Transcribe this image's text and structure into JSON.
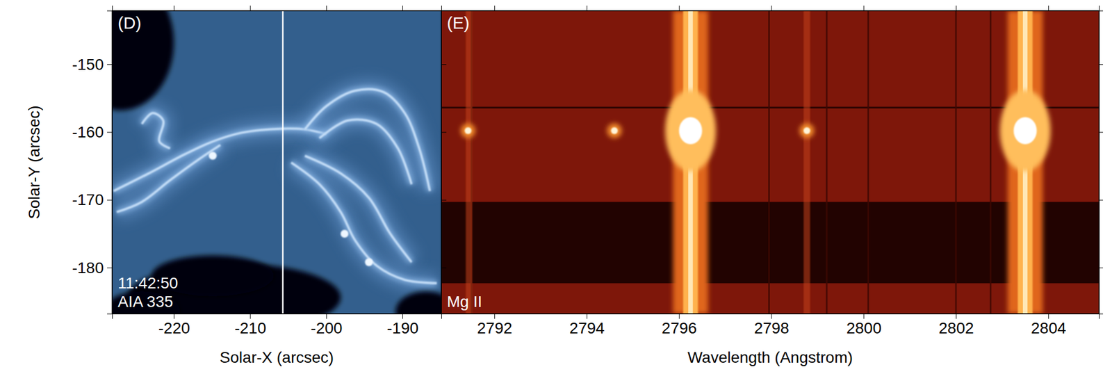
{
  "chart_data": [
    {
      "type": "image",
      "panel_label": "(D)",
      "annotations": [
        "11:42:50",
        "AIA 335"
      ],
      "xlabel": "Solar-X (arcsec)",
      "ylabel": "Solar-Y (arcsec)",
      "xlim": [
        -228.1,
        -184.9
      ],
      "ylim": [
        -186.8,
        -142.1
      ],
      "xticks": [
        -220,
        -210,
        -200,
        -190
      ],
      "yticks": [
        -180,
        -170,
        -160,
        -150
      ],
      "slit_x": -205.7,
      "loops": [
        [
          [
            -227.9,
            -168.7
          ],
          [
            -223.3,
            -166.1
          ],
          [
            -218.6,
            -163.3
          ],
          [
            -214.9,
            -161.4
          ],
          [
            -211.1,
            -160.1
          ],
          [
            -205.7,
            -159.5
          ],
          [
            -202.8,
            -159.6
          ],
          [
            -200.0,
            -160.3
          ]
        ],
        [
          [
            -202.8,
            -159.6
          ],
          [
            -200.0,
            -156.2
          ],
          [
            -196.2,
            -153.9
          ],
          [
            -192.5,
            -154.1
          ],
          [
            -189.7,
            -157.2
          ],
          [
            -187.8,
            -162.4
          ],
          [
            -186.4,
            -168.7
          ]
        ],
        [
          [
            -200.9,
            -160.9
          ],
          [
            -197.2,
            -158.3
          ],
          [
            -193.4,
            -158.8
          ],
          [
            -190.6,
            -162.4
          ],
          [
            -188.8,
            -167.7
          ]
        ],
        [
          [
            -204.6,
            -164.5
          ],
          [
            -200.9,
            -167.7
          ],
          [
            -198.1,
            -171.8
          ],
          [
            -196.2,
            -176.0
          ],
          [
            -193.4,
            -179.7
          ],
          [
            -189.7,
            -181.8
          ],
          [
            -185.5,
            -182.3
          ]
        ],
        [
          [
            -202.8,
            -163.5
          ],
          [
            -198.1,
            -166.1
          ],
          [
            -194.4,
            -169.7
          ],
          [
            -191.6,
            -175.0
          ],
          [
            -188.8,
            -179.2
          ]
        ],
        [
          [
            -227.5,
            -171.8
          ],
          [
            -224.2,
            -170.3
          ],
          [
            -220.5,
            -167.1
          ],
          [
            -216.7,
            -164.0
          ],
          [
            -213.9,
            -161.9
          ]
        ],
        [
          [
            -224.2,
            -158.8
          ],
          [
            -222.8,
            -157.2
          ],
          [
            -221.4,
            -158.3
          ],
          [
            -221.9,
            -161.4
          ],
          [
            -220.5,
            -162.4
          ]
        ]
      ],
      "knots": [
        [
          -197.6,
          -175.0
        ],
        [
          -194.4,
          -179.2
        ],
        [
          -214.9,
          -163.5
        ]
      ],
      "dark_regions": [
        [
          -227.0,
          -146.8,
          7,
          10
        ],
        [
          -212.1,
          -184.4,
          14,
          5
        ],
        [
          -224.2,
          -186.5,
          5,
          3
        ],
        [
          -186.9,
          -186.5,
          4,
          3
        ],
        [
          -214.9,
          -181.2,
          8,
          3
        ]
      ]
    },
    {
      "type": "image",
      "panel_label": "(E)",
      "annotations": [
        "Mg II"
      ],
      "xlabel": "Wavelength (Angstrom)",
      "xlim": [
        2790.85,
        2805.1
      ],
      "ylim": [
        -186.8,
        -142.1
      ],
      "xticks": [
        2792,
        2794,
        2796,
        2798,
        2800,
        2802,
        2804
      ],
      "yticks": [
        -180,
        -170,
        -160,
        -150
      ],
      "tick_labels": "x",
      "emission_lines": [
        2796.25,
        2803.5
      ],
      "faint_lines": [
        2791.45,
        2798.77
      ],
      "absorption_lines": [
        2791.5,
        2797.95,
        2799.2,
        2800.1,
        2802.0,
        2802.75
      ],
      "flare_row": -159.8,
      "flare_spots": [
        2791.43,
        2794.6,
        2798.77
      ],
      "dark_band": [
        -182.3,
        -170.3
      ],
      "dark_row": -156.4
    }
  ]
}
